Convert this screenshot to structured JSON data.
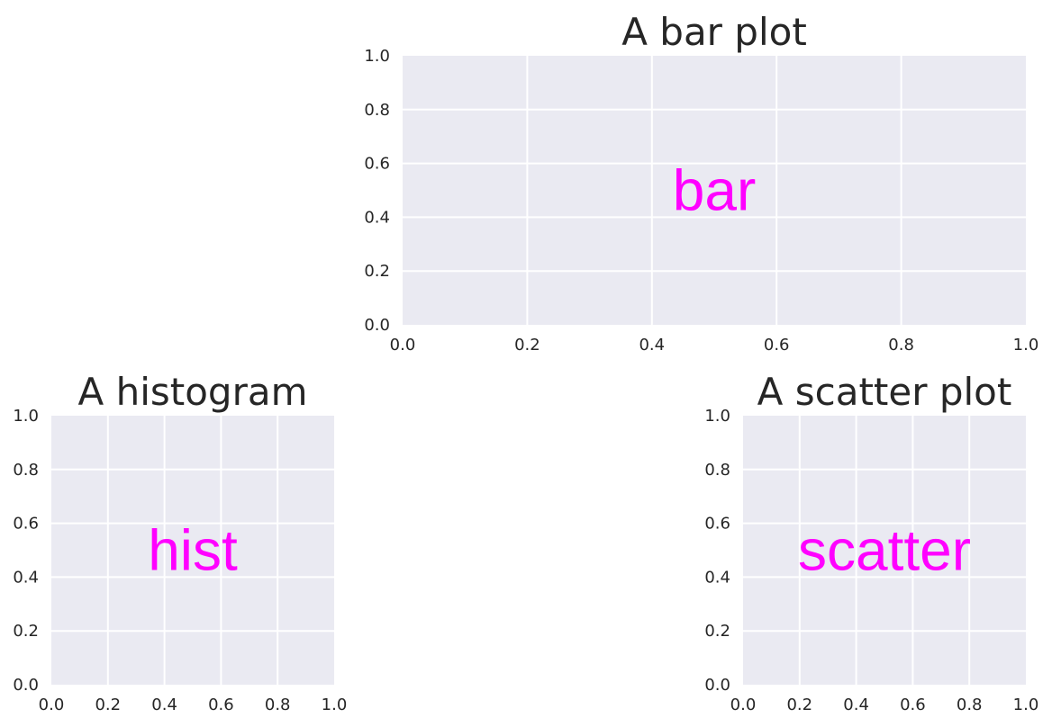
{
  "chart_data": [
    {
      "id": "bar",
      "type": "bar",
      "title": "A bar plot",
      "annotation": "bar",
      "xlim": [
        0,
        1
      ],
      "ylim": [
        0,
        1
      ],
      "xticks": [
        "0.0",
        "0.2",
        "0.4",
        "0.6",
        "0.8",
        "1.0"
      ],
      "yticks": [
        "0.0",
        "0.2",
        "0.4",
        "0.6",
        "0.8",
        "1.0"
      ],
      "grid": true,
      "background": "#eaeaf2",
      "annotation_color": "#ff00ff",
      "values": []
    },
    {
      "id": "hist",
      "type": "bar",
      "title": "A histogram",
      "annotation": "hist",
      "xlim": [
        0,
        1
      ],
      "ylim": [
        0,
        1
      ],
      "xticks": [
        "0.0",
        "0.2",
        "0.4",
        "0.6",
        "0.8",
        "1.0"
      ],
      "yticks": [
        "0.0",
        "0.2",
        "0.4",
        "0.6",
        "0.8",
        "1.0"
      ],
      "grid": true,
      "background": "#eaeaf2",
      "annotation_color": "#ff00ff",
      "values": []
    },
    {
      "id": "scatter",
      "type": "scatter",
      "title": "A scatter plot",
      "annotation": "scatter",
      "xlim": [
        0,
        1
      ],
      "ylim": [
        0,
        1
      ],
      "xticks": [
        "0.0",
        "0.2",
        "0.4",
        "0.6",
        "0.8",
        "1.0"
      ],
      "yticks": [
        "0.0",
        "0.2",
        "0.4",
        "0.6",
        "0.8",
        "1.0"
      ],
      "grid": true,
      "background": "#eaeaf2",
      "annotation_color": "#ff00ff",
      "values": []
    }
  ]
}
